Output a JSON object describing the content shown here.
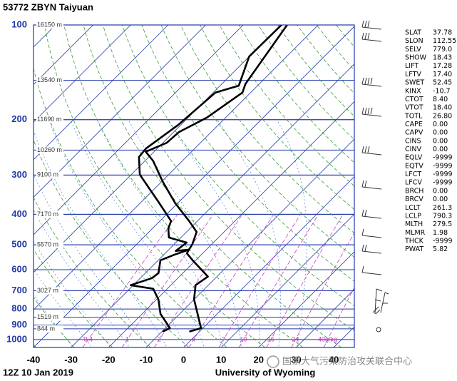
{
  "chart_data": {
    "type": "skew-t",
    "title": "53772 ZBYN Taiyuan",
    "time_label": "12Z 10 Jan 2019",
    "source": "University of Wyoming",
    "watermark": "国家大气污染防治攻关联合中心",
    "xlim": [
      -40,
      45.5
    ],
    "xticks": [
      -40,
      -30,
      -20,
      -10,
      0,
      10,
      20,
      30,
      40
    ],
    "ylim": [
      1060,
      100
    ],
    "log_y": true,
    "yticks": [
      100,
      200,
      300,
      400,
      500,
      600,
      700,
      800,
      900,
      1000
    ],
    "height_labels": [
      {
        "pressure": 100,
        "label": "16150 m"
      },
      {
        "pressure": 150,
        "label": "13540 m"
      },
      {
        "pressure": 200,
        "label": "11690 m"
      },
      {
        "pressure": 250,
        "label": "10260 m"
      },
      {
        "pressure": 300,
        "label": "9100 m"
      },
      {
        "pressure": 400,
        "label": "7170 m"
      },
      {
        "pressure": 500,
        "label": "5570 m"
      },
      {
        "pressure": 700,
        "label": "3027 m"
      },
      {
        "pressure": 850,
        "label": "1519 m"
      },
      {
        "pressure": 925,
        "label": "844 m"
      }
    ],
    "mixing_ratio_labels": [
      0.4,
      1,
      2,
      4,
      7,
      10,
      16,
      24,
      {
        "value": 40,
        "label": "40g/kg"
      }
    ],
    "grid": true,
    "series": [
      {
        "color": "#000000",
        "pressure": [
          944,
          920,
          746,
          672,
          631,
          560,
          532,
          497,
          455,
          420,
          369,
          315,
          270,
          253,
          237,
          219,
          197,
          164,
          154,
          100
        ],
        "values": [
          -2.7,
          -0.5,
          -10.0,
          -13.4,
          -12.4,
          -20.8,
          -24.2,
          -25.2,
          -27.3,
          -32.2,
          -40.6,
          -49.7,
          -57.9,
          -62.2,
          -59.0,
          -58.6,
          -55.0,
          -52.2,
          -53.7,
          -58.3
        ]
      },
      {
        "color": "#000000",
        "pressure": [
          944,
          920,
          829,
          746,
          690,
          672,
          638,
          615,
          560,
          537,
          518,
          523,
          492,
          474,
          443,
          420,
          365,
          299,
          263,
          247,
          208,
          164,
          156,
          126,
          100
        ],
        "values": [
          -9.8,
          -8.8,
          -15.1,
          -19.5,
          -23.7,
          -30.7,
          -26.9,
          -26.5,
          -29.4,
          -27.1,
          -24.6,
          -27.8,
          -27.1,
          -33.2,
          -35.8,
          -37.0,
          -45.5,
          -57.7,
          -62.6,
          -63.0,
          -60.7,
          -59.4,
          -55.0,
          -60.0,
          -59.8
        ]
      }
    ],
    "indices": [
      [
        "SLAT",
        "37.78"
      ],
      [
        "SLON",
        "112.55"
      ],
      [
        "SELV",
        "779.0"
      ],
      [
        "SHOW",
        "18.43"
      ],
      [
        "LIFT",
        "17.28"
      ],
      [
        "LFTV",
        "17.40"
      ],
      [
        "SWET",
        "52.45"
      ],
      [
        "KINX",
        "-10.7"
      ],
      [
        "CTOT",
        "8.40"
      ],
      [
        "VTOT",
        "18.40"
      ],
      [
        "TOTL",
        "26.80"
      ],
      [
        "CAPE",
        "0.00"
      ],
      [
        "CAPV",
        "0.00"
      ],
      [
        "CINS",
        "0.00"
      ],
      [
        "CINV",
        "0.00"
      ],
      [
        "EQLV",
        "-9999"
      ],
      [
        "EQTV",
        "-9999"
      ],
      [
        "LFCT",
        "-9999"
      ],
      [
        "LFCV",
        "-9999"
      ],
      [
        "BRCH",
        "0.00"
      ],
      [
        "BRCV",
        "0.00"
      ],
      [
        "LCLT",
        "261.3"
      ],
      [
        "LCLP",
        "790.3"
      ],
      [
        "MLTH",
        "279.5"
      ],
      [
        "MLMR",
        "1.98"
      ],
      [
        "THCK",
        "-9999"
      ],
      [
        "PWAT",
        "5.82"
      ]
    ]
  }
}
